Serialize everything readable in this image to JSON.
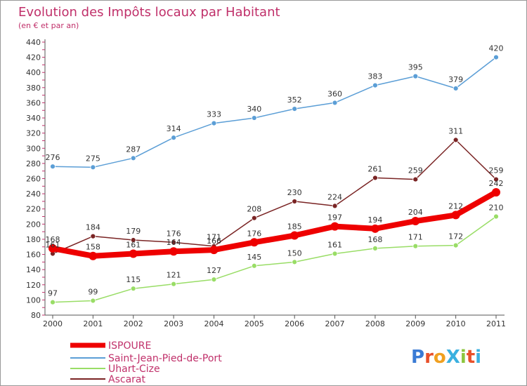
{
  "chart_data": {
    "type": "line",
    "title": "Evolution des Impôts locaux par Habitant",
    "subtitle": "(en € et par an)",
    "xlabel": "",
    "ylabel": "",
    "ylim": [
      80,
      440
    ],
    "yticks": [
      80,
      100,
      120,
      140,
      160,
      180,
      200,
      220,
      240,
      260,
      280,
      300,
      320,
      340,
      360,
      380,
      400,
      420,
      440
    ],
    "categories": [
      "2000",
      "2001",
      "2002",
      "2003",
      "2004",
      "2005",
      "2006",
      "2007",
      "2008",
      "2009",
      "2010",
      "2011"
    ],
    "grid": false,
    "legend_position": "bottom-left",
    "series": [
      {
        "name": "ISPOURE",
        "color": "#ee0000",
        "values": [
          168,
          158,
          161,
          164,
          166,
          176,
          185,
          197,
          194,
          204,
          212,
          242
        ]
      },
      {
        "name": "Saint-Jean-Pied-de-Port",
        "color": "#5b9ed6",
        "values": [
          276,
          275,
          287,
          314,
          333,
          340,
          352,
          360,
          383,
          395,
          379,
          420
        ]
      },
      {
        "name": "Uhart-Cize",
        "color": "#99dd66",
        "values": [
          97,
          99,
          115,
          121,
          127,
          145,
          150,
          161,
          168,
          171,
          172,
          210
        ]
      },
      {
        "name": "Ascarat",
        "color": "#7a2424",
        "values": [
          161,
          184,
          179,
          176,
          171,
          208,
          230,
          224,
          261,
          259,
          311,
          259
        ]
      }
    ]
  },
  "logo": {
    "text": "ProXiti",
    "letter_colors": [
      "#3a7bd5",
      "#e8502a",
      "#f0a020",
      "#3ab0e0",
      "#8dc63f",
      "#e8502a",
      "#3ab0e0"
    ]
  }
}
